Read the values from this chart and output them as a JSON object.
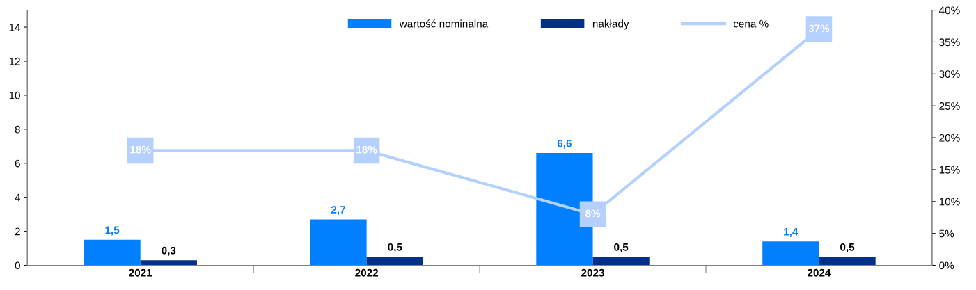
{
  "chart_data": {
    "type": "bar",
    "categories": [
      "2021",
      "2022",
      "2023",
      "2024"
    ],
    "series": [
      {
        "name": "wartość nominalna",
        "color": "#0080ff",
        "values": [
          1.5,
          2.7,
          6.6,
          1.4
        ],
        "value_labels": [
          "1,5",
          "2,7",
          "6,6",
          "1,4"
        ]
      },
      {
        "name": "nakłady",
        "color": "#003087",
        "values": [
          0.3,
          0.5,
          0.5,
          0.5
        ],
        "value_labels": [
          "0,3",
          "0,5",
          "0,5",
          "0,5"
        ]
      },
      {
        "name": "cena %",
        "type": "line",
        "axis": "y2",
        "color": "#b4d0ff",
        "values": [
          18,
          18,
          8,
          37
        ],
        "value_labels": [
          "18%",
          "18%",
          "8%",
          "37%"
        ]
      }
    ],
    "ylim": [
      0,
      15
    ],
    "yticks": [
      0,
      2,
      4,
      6,
      8,
      10,
      12,
      14
    ],
    "y2lim": [
      0,
      40
    ],
    "y2ticks": [
      {
        "value": 0,
        "label": "0%"
      },
      {
        "value": 5,
        "label": "5%"
      },
      {
        "value": 10,
        "label": "10%"
      },
      {
        "value": 15,
        "label": "15%"
      },
      {
        "value": 20,
        "label": "20%"
      },
      {
        "value": 25,
        "label": "25%"
      },
      {
        "value": 30,
        "label": "30%"
      },
      {
        "value": 35,
        "label": "35%"
      },
      {
        "value": 40,
        "label": "40%"
      }
    ],
    "legend": "top right",
    "grid": false,
    "marker": "square",
    "line_style": "solid"
  }
}
